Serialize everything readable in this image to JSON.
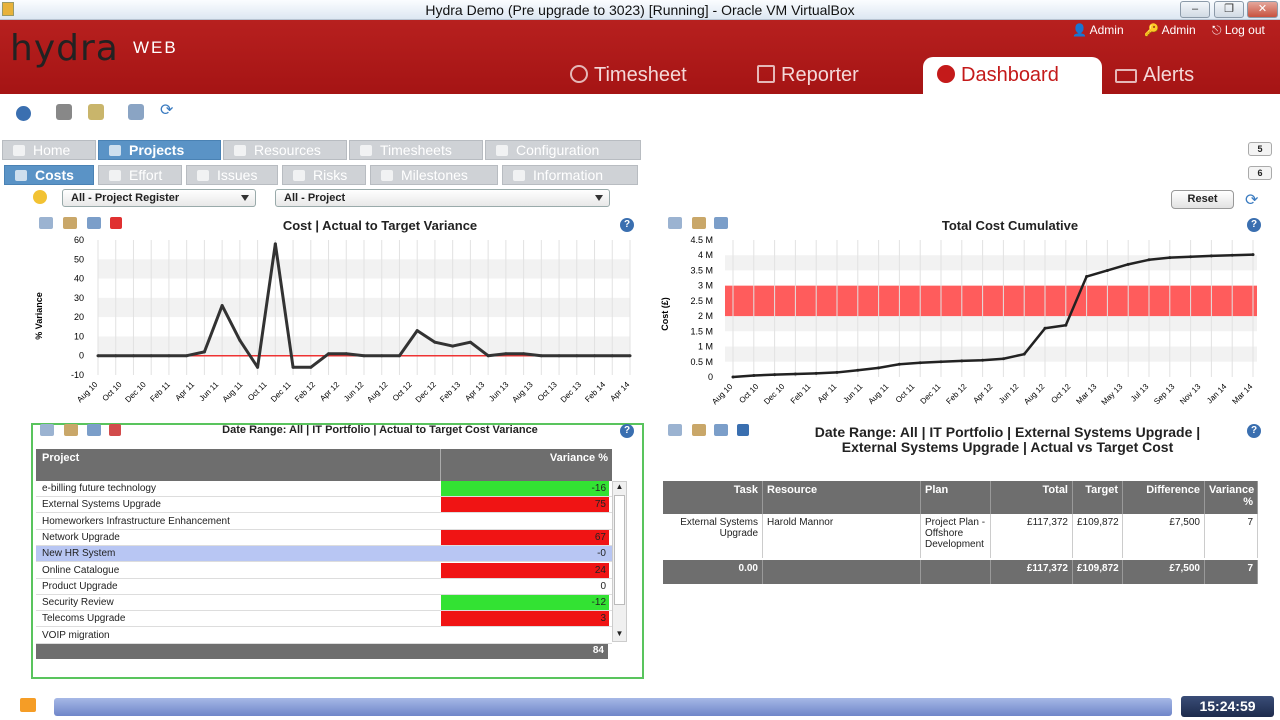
{
  "window": {
    "title": "Hydra Demo (Pre upgrade to 3023) [Running] - Oracle VM VirtualBox"
  },
  "header": {
    "logo": "hydra",
    "logo_sub": "WEB",
    "links": [
      "Admin",
      "Admin",
      "Log out"
    ],
    "tabs": [
      "Timesheet",
      "Reporter",
      "Dashboard",
      "Alerts"
    ]
  },
  "tabs_primary": [
    "Home",
    "Projects",
    "Resources",
    "Timesheets",
    "Configuration"
  ],
  "tabs_secondary": [
    "Costs",
    "Effort",
    "Issues",
    "Risks",
    "Milestones",
    "Information"
  ],
  "side_buttons": [
    "5",
    "6"
  ],
  "filters": {
    "register": "All - Project Register",
    "project": "All - Project"
  },
  "reset_label": "Reset",
  "variance_chart": {
    "title": "Cost | Actual to Target Variance",
    "ylabel": "% Variance",
    "yticks": [
      "60",
      "50",
      "40",
      "30",
      "20",
      "10",
      "0",
      "-10"
    ],
    "xticks": [
      "Aug 10",
      "Oct 10",
      "Dec 10",
      "Feb 11",
      "Apr 11",
      "Jun 11",
      "Aug 11",
      "Oct 11",
      "Dec 11",
      "Feb 12",
      "Apr 12",
      "Jun 12",
      "Aug 12",
      "Oct 12",
      "Dec 12",
      "Feb 13",
      "Apr 13",
      "Jun 13",
      "Aug 13",
      "Oct 13",
      "Dec 13",
      "Feb 14",
      "Apr 14"
    ]
  },
  "cumulative_chart": {
    "title": "Total Cost Cumulative",
    "ylabel": "Cost (£)",
    "yticks": [
      "4.5 M",
      "4 M",
      "3.5 M",
      "3 M",
      "2.5 M",
      "2 M",
      "1.5 M",
      "1 M",
      "0.5 M",
      "0"
    ],
    "xticks": [
      "Aug 10",
      "Oct 10",
      "Dec 10",
      "Feb 11",
      "Apr 11",
      "Jun 11",
      "Aug 11",
      "Oct 11",
      "Dec 11",
      "Feb 12",
      "Apr 12",
      "Jun 12",
      "Aug 12",
      "Oct 12",
      "Mar 13",
      "May 13",
      "Jul 13",
      "Sep 13",
      "Nov 13",
      "Jan 14",
      "Mar 14"
    ]
  },
  "chart_data": [
    {
      "type": "line",
      "title": "Cost | Actual to Target Variance",
      "ylabel": "% Variance",
      "ylim": [
        -10,
        60
      ],
      "x": [
        "Aug 10",
        "Oct 10",
        "Dec 10",
        "Feb 11",
        "Apr 11",
        "Jun 11",
        "Jul 11",
        "Aug 11",
        "Sep 11",
        "Oct 11",
        "Nov 11",
        "Dec 11",
        "Jan 12",
        "Feb 12",
        "Mar 12",
        "Apr 12",
        "Jun 12",
        "Aug 12",
        "Oct 12",
        "Dec 12",
        "Jan 13",
        "Feb 13",
        "Mar 13",
        "Apr 13",
        "May 13",
        "Jun 13",
        "Aug 13",
        "Oct 13",
        "Dec 13",
        "Feb 14",
        "Apr 14"
      ],
      "series": [
        {
          "values": [
            0,
            0,
            0,
            0,
            0,
            0,
            2,
            26,
            8,
            -6,
            58,
            -6,
            -6,
            1,
            1,
            0,
            0,
            0,
            13,
            7,
            5,
            7,
            0,
            1,
            1,
            0,
            0,
            0,
            0,
            0,
            0
          ]
        }
      ]
    },
    {
      "type": "line",
      "title": "Total Cost Cumulative",
      "ylabel": "Cost (£)",
      "ylim": [
        0,
        4.5
      ],
      "target_band": [
        2,
        3
      ],
      "x": [
        "Aug 10",
        "Oct 10",
        "Dec 10",
        "Feb 11",
        "Apr 11",
        "Jun 11",
        "Aug 11",
        "Oct 11",
        "Dec 11",
        "Feb 12",
        "Apr 12",
        "Jun 12",
        "Aug 12",
        "Oct 12",
        "Dec 12",
        "Feb 13",
        "Mar 13",
        "Apr 13",
        "May 13",
        "Jun 13",
        "Jul 13",
        "Aug 13",
        "Sep 13",
        "Nov 13",
        "Jan 14",
        "Mar 14"
      ],
      "series": [
        {
          "values": [
            0,
            0.05,
            0.08,
            0.1,
            0.12,
            0.15,
            0.22,
            0.3,
            0.42,
            0.47,
            0.5,
            0.53,
            0.55,
            0.6,
            0.75,
            1.6,
            1.7,
            3.3,
            3.5,
            3.7,
            3.85,
            3.92,
            3.95,
            3.98,
            4.0,
            4.02
          ]
        }
      ]
    }
  ],
  "variance_table": {
    "title": "Date Range: All | IT Portfolio | Actual to Target Cost Variance",
    "headers": [
      "Project",
      "Variance %"
    ],
    "rows": [
      {
        "name": "e-billing future technology",
        "value": "-16",
        "color": "#33e233"
      },
      {
        "name": "External Systems Upgrade",
        "value": "75",
        "color": "#f01414"
      },
      {
        "name": "Homeworkers Infrastructure Enhancement",
        "value": "",
        "color": "#ffffff"
      },
      {
        "name": "Network Upgrade",
        "value": "67",
        "color": "#f01414"
      },
      {
        "name": "New HR System",
        "value": "-0",
        "color": "#b8c6f3"
      },
      {
        "name": "Online Catalogue",
        "value": "24",
        "color": "#f01414"
      },
      {
        "name": "Product Upgrade",
        "value": "0",
        "color": "#ffffff"
      },
      {
        "name": "Security Review",
        "value": "-12",
        "color": "#33e233"
      },
      {
        "name": "Telecoms Upgrade",
        "value": "3",
        "color": "#f01414"
      },
      {
        "name": "VOIP migration",
        "value": "",
        "color": "#ffffff"
      }
    ],
    "footer": "84"
  },
  "detail_table": {
    "title": "Date Range: All | IT Portfolio | External Systems Upgrade | External Systems Upgrade | Actual vs Target Cost",
    "headers": [
      "Task",
      "Resource",
      "Plan",
      "Total",
      "Target",
      "Difference",
      "Variance %"
    ],
    "row": [
      "External Systems Upgrade",
      "Harold Mannor",
      "Project Plan - Offshore Development",
      "£117,372",
      "£109,872",
      "£7,500",
      "7"
    ],
    "footer": [
      "0.00",
      "",
      "",
      "£117,372",
      "£109,872",
      "£7,500",
      "7"
    ]
  },
  "clock": "15:24:59"
}
